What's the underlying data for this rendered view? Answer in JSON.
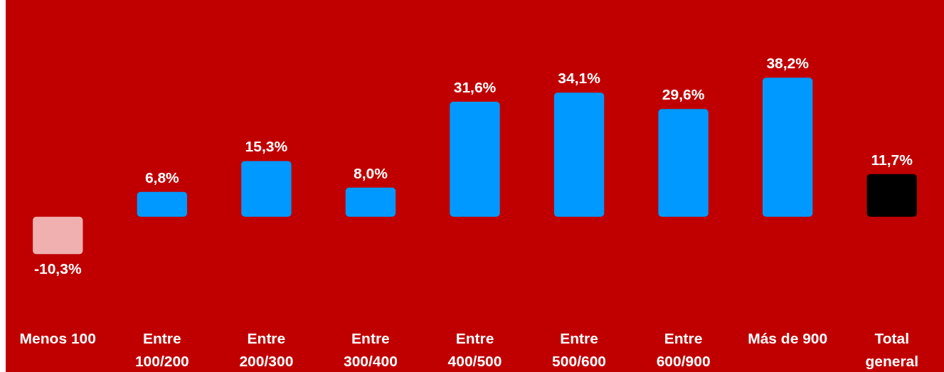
{
  "chart_data": {
    "type": "bar",
    "categories": [
      "Menos 100",
      "Entre 100/200",
      "Entre 200/300",
      "Entre 300/400",
      "Entre 400/500",
      "Entre 500/600",
      "Entre 600/900",
      "Más de 900",
      "Total general"
    ],
    "values": [
      -10.3,
      6.8,
      15.3,
      8.0,
      31.6,
      34.1,
      29.6,
      38.2,
      11.7
    ],
    "colors": [
      "#f0b0b0",
      "#0099ff",
      "#0099ff",
      "#0099ff",
      "#0099ff",
      "#0099ff",
      "#0099ff",
      "#0099ff",
      "#000000"
    ],
    "value_labels": [
      "-10,3%",
      "6,8%",
      "15,3%",
      "8,0%",
      "31,6%",
      "34,1%",
      "29,6%",
      "38,2%",
      "11,7%"
    ]
  }
}
